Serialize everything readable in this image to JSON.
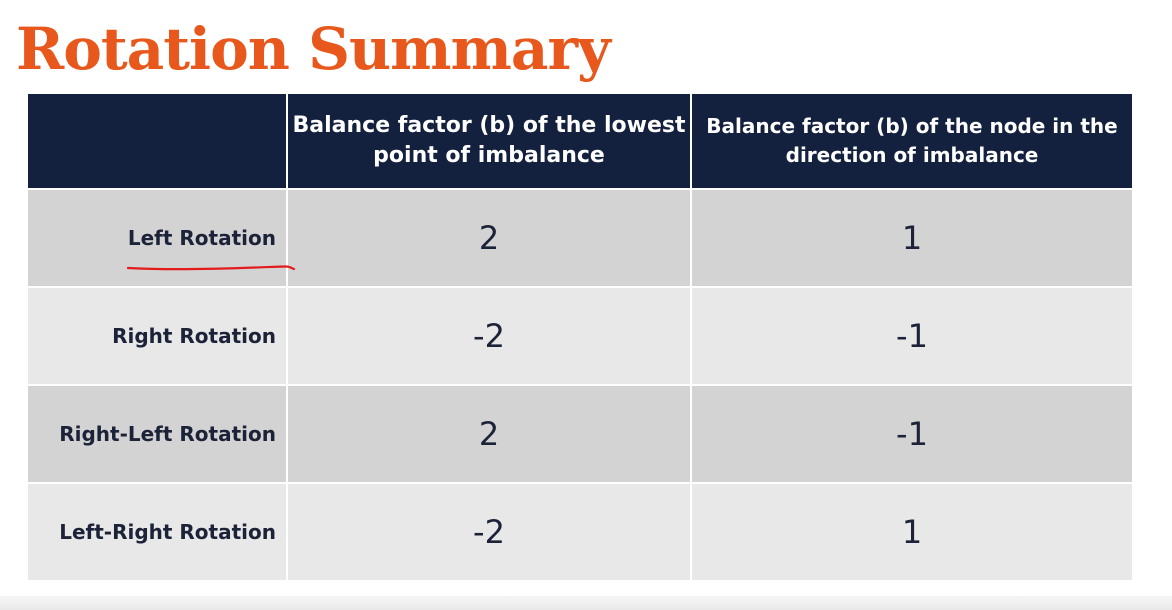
{
  "colors": {
    "title": "#e8581c",
    "header_bg": "#13213e",
    "row_dark": "#d3d3d3",
    "row_light": "#e8e8e8",
    "row_text": "#1c2238",
    "annotation": "#e21b1b"
  },
  "slide": {
    "title": "Rotation Summary"
  },
  "table": {
    "headers": [
      "",
      "Balance factor (b) of the lowest point of imbalance",
      "Balance factor (b) of the node in the direction of imbalance"
    ],
    "rows": [
      {
        "label": "Left Rotation",
        "b_lowest": "2",
        "b_direction": "1",
        "underlined": true
      },
      {
        "label": "Right Rotation",
        "b_lowest": "-2",
        "b_direction": "-1"
      },
      {
        "label": "Right-Left Rotation",
        "b_lowest": "2",
        "b_direction": "-1"
      },
      {
        "label": "Left-Right Rotation",
        "b_lowest": "-2",
        "b_direction": "1"
      }
    ]
  },
  "annotation": {
    "icon": "red-pen-underline-icon"
  }
}
